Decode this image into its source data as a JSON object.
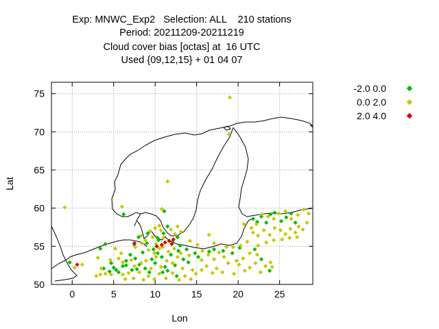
{
  "chart_data": {
    "type": "scatter",
    "title_lines": [
      "Exp: MNWC_Exp2   Selection: ALL    210 stations",
      "Period: 20211209-20211219",
      "Cloud cover bias [octas] at  16 UTC",
      "Used {09,12,15} + 01 04 07"
    ],
    "xlabel": "Lon",
    "ylabel": "Lat",
    "xlim": [
      -2.5,
      29
    ],
    "ylim": [
      50,
      76.5
    ],
    "xticks": [
      0,
      5,
      10,
      15,
      20,
      25
    ],
    "yticks": [
      50,
      55,
      60,
      65,
      70,
      75
    ],
    "grid": true,
    "legend_position": "top-right outside",
    "series": [
      {
        "name": "-2.0 0.0",
        "color": "#00bb00",
        "points": [
          [
            -0.3,
            52.9
          ],
          [
            3.4,
            54.7
          ],
          [
            4.0,
            55.3
          ],
          [
            4.7,
            52.8
          ],
          [
            5.0,
            52.2
          ],
          [
            5.3,
            51.9
          ],
          [
            5.6,
            51.6
          ],
          [
            6.1,
            52.4
          ],
          [
            6.5,
            53.1
          ],
          [
            7.2,
            51.9
          ],
          [
            7.6,
            53.4
          ],
          [
            8.1,
            52.6
          ],
          [
            8.8,
            52.1
          ],
          [
            9.3,
            51.6
          ],
          [
            9.6,
            53.3
          ],
          [
            10.0,
            52.8
          ],
          [
            10.3,
            54.1
          ],
          [
            10.8,
            53.6
          ],
          [
            11.2,
            52.3
          ],
          [
            11.5,
            51.8
          ],
          [
            11.9,
            53.9
          ],
          [
            12.4,
            52.5
          ],
          [
            12.8,
            54.4
          ],
          [
            13.4,
            53.3
          ],
          [
            14.0,
            52.9
          ],
          [
            8.5,
            54.2
          ],
          [
            9.0,
            55.4
          ],
          [
            10.4,
            55.8
          ],
          [
            11.0,
            56.7
          ],
          [
            11.5,
            57.6
          ],
          [
            12.1,
            55.6
          ],
          [
            12.7,
            56.2
          ],
          [
            13.0,
            55.1
          ],
          [
            7.5,
            55.2
          ],
          [
            8.0,
            56.2
          ],
          [
            9.1,
            56.7
          ],
          [
            10.3,
            56.1
          ],
          [
            6.2,
            59.2
          ],
          [
            11.1,
            59.6
          ],
          [
            16.5,
            54.3
          ],
          [
            17.1,
            54.6
          ],
          [
            18.2,
            54.4
          ],
          [
            21.8,
            58.6
          ],
          [
            22.3,
            58.2
          ],
          [
            22.8,
            58.9
          ],
          [
            23.4,
            58.1
          ],
          [
            23.9,
            59.2
          ],
          [
            24.4,
            59.4
          ],
          [
            25.2,
            58.3
          ],
          [
            25.8,
            58.8
          ],
          [
            26.4,
            59.3
          ],
          [
            26.9,
            58.1
          ],
          [
            22.0,
            54.6
          ],
          [
            22.8,
            53.3
          ],
          [
            23.8,
            51.8
          ],
          [
            19.3,
            54.1
          ],
          [
            20.2,
            54.8
          ],
          [
            14.8,
            54.1
          ],
          [
            15.2,
            53.6
          ],
          [
            13.8,
            54.6
          ],
          [
            9.8,
            54.6
          ],
          [
            7.0,
            53.9
          ],
          [
            6.5,
            52.5
          ],
          [
            4.5,
            51.7
          ],
          [
            10.9,
            51.6
          ],
          [
            12.6,
            51.1
          ],
          [
            3.8,
            52.1
          ],
          [
            7.8,
            52.0
          ]
        ]
      },
      {
        "name": "0.0 2.0",
        "color": "#c8c800",
        "points": [
          [
            19.0,
            74.5
          ],
          [
            18.9,
            69.7
          ],
          [
            11.5,
            63.5
          ],
          [
            -0.9,
            60.1
          ],
          [
            6.0,
            60.2
          ],
          [
            10.8,
            59.9
          ],
          [
            0.3,
            52.2
          ],
          [
            1.2,
            52.6
          ],
          [
            2.9,
            51.1
          ],
          [
            3.4,
            51.3
          ],
          [
            4.0,
            51.4
          ],
          [
            3.5,
            52.1
          ],
          [
            3.1,
            53.5
          ],
          [
            4.6,
            53.2
          ],
          [
            5.6,
            53.4
          ],
          [
            6.1,
            51.3
          ],
          [
            6.8,
            51.5
          ],
          [
            7.4,
            50.8
          ],
          [
            8.1,
            51.6
          ],
          [
            8.6,
            50.6
          ],
          [
            9.2,
            51.1
          ],
          [
            9.9,
            50.7
          ],
          [
            10.5,
            51.4
          ],
          [
            11.3,
            50.8
          ],
          [
            12.1,
            51.5
          ],
          [
            12.9,
            50.6
          ],
          [
            13.6,
            51.1
          ],
          [
            14.3,
            50.7
          ],
          [
            14.9,
            51.4
          ],
          [
            15.6,
            51.9
          ],
          [
            16.2,
            52.4
          ],
          [
            16.9,
            51.5
          ],
          [
            17.4,
            52.1
          ],
          [
            18.1,
            51.6
          ],
          [
            18.8,
            52.8
          ],
          [
            19.5,
            51.4
          ],
          [
            20.1,
            52.6
          ],
          [
            20.8,
            51.8
          ],
          [
            21.4,
            52.2
          ],
          [
            22.1,
            52.8
          ],
          [
            22.7,
            51.6
          ],
          [
            23.3,
            52.4
          ],
          [
            23.9,
            52.9
          ],
          [
            24.1,
            52.3
          ],
          [
            21.4,
            54.1
          ],
          [
            22.3,
            53.9
          ],
          [
            20.6,
            53.4
          ],
          [
            19.8,
            53.1
          ],
          [
            18.3,
            53.6
          ],
          [
            17.1,
            53.3
          ],
          [
            16.4,
            53.9
          ],
          [
            15.6,
            53.2
          ],
          [
            8.9,
            53.1
          ],
          [
            9.5,
            52.1
          ],
          [
            10.1,
            53.6
          ],
          [
            10.7,
            52.3
          ],
          [
            11.4,
            53.1
          ],
          [
            12.1,
            52.8
          ],
          [
            12.7,
            53.6
          ],
          [
            13.3,
            52.1
          ],
          [
            14.1,
            53.8
          ],
          [
            14.5,
            51.9
          ],
          [
            13.1,
            54.1
          ],
          [
            12.3,
            54.7
          ],
          [
            11.6,
            54.3
          ],
          [
            10.9,
            54.9
          ],
          [
            10.1,
            55.3
          ],
          [
            9.2,
            54.5
          ],
          [
            8.4,
            55.4
          ],
          [
            7.6,
            54.9
          ],
          [
            7.1,
            53.2
          ],
          [
            5.9,
            54.1
          ],
          [
            5.2,
            54.7
          ],
          [
            8.3,
            56.4
          ],
          [
            9.4,
            57.0
          ],
          [
            10.0,
            57.4
          ],
          [
            10.5,
            57.7
          ],
          [
            9.7,
            56.2
          ],
          [
            8.8,
            55.8
          ],
          [
            11.9,
            57.2
          ],
          [
            12.4,
            56.6
          ],
          [
            13.1,
            56.9
          ],
          [
            14.2,
            55.7
          ],
          [
            15.1,
            55.2
          ],
          [
            16.5,
            56.5
          ],
          [
            17.1,
            55.4
          ],
          [
            18.6,
            54.9
          ],
          [
            19.4,
            54.9
          ],
          [
            20.3,
            55.1
          ],
          [
            21.1,
            55.6
          ],
          [
            21.8,
            56.8
          ],
          [
            22.4,
            56.4
          ],
          [
            23.1,
            57.1
          ],
          [
            23.8,
            56.5
          ],
          [
            24.4,
            57.4
          ],
          [
            25.1,
            57.1
          ],
          [
            25.7,
            56.6
          ],
          [
            26.3,
            57.3
          ],
          [
            26.9,
            56.8
          ],
          [
            27.3,
            57.6
          ],
          [
            27.8,
            57.2
          ],
          [
            28.3,
            58.1
          ],
          [
            28.5,
            59.3
          ],
          [
            27.9,
            59.8
          ],
          [
            27.2,
            59.1
          ],
          [
            26.4,
            58.6
          ],
          [
            25.7,
            59.6
          ],
          [
            24.9,
            59.3
          ],
          [
            24.3,
            58.6
          ],
          [
            23.6,
            58.9
          ],
          [
            22.9,
            59.2
          ],
          [
            22.2,
            57.9
          ],
          [
            21.6,
            57.4
          ],
          [
            20.7,
            57.9
          ],
          [
            22.4,
            55.1
          ],
          [
            23.4,
            55.5
          ],
          [
            24.3,
            55.8
          ],
          [
            25.3,
            55.9
          ],
          [
            26.2,
            56.1
          ],
          [
            27.1,
            56.2
          ],
          [
            15.7,
            54.4
          ],
          [
            17.7,
            54.2
          ],
          [
            4.7,
            51.3
          ],
          [
            6.4,
            50.7
          ],
          [
            9.9,
            54.1
          ],
          [
            10.5,
            54.7
          ],
          [
            7.5,
            52.4
          ],
          [
            6.1,
            52.9
          ],
          [
            8.3,
            52.8
          ],
          [
            11.0,
            56.1
          ],
          [
            10.7,
            57.1
          ],
          [
            12.7,
            57.6
          ]
        ]
      },
      {
        "name": "2.0 4.0",
        "color": "#dd0000",
        "points": [
          [
            0.6,
            52.6
          ],
          [
            7.5,
            55.4
          ],
          [
            10.2,
            55.0
          ],
          [
            11.2,
            55.5
          ],
          [
            11.7,
            55.7
          ],
          [
            12.2,
            55.9
          ],
          [
            12.0,
            55.3
          ],
          [
            10.8,
            55.2
          ]
        ]
      }
    ]
  }
}
